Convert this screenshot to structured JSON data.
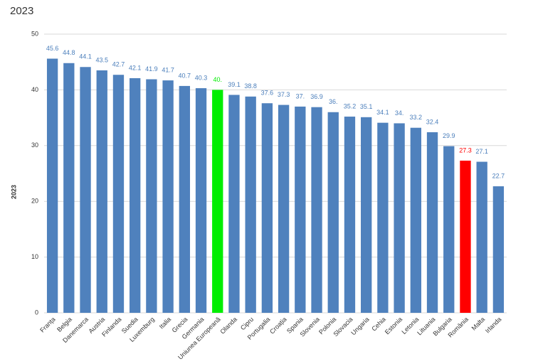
{
  "chart_data": {
    "type": "bar",
    "title": "2023",
    "y_label": "2023",
    "categories": [
      "Franța",
      "Belgia",
      "Danemarca",
      "Austria",
      "Finlanda",
      "Suedia",
      "Luxemburg",
      "Italia",
      "Grecia",
      "Germania",
      "Uniunea Europeană",
      "Olanda",
      "Cipru",
      "Portugalia",
      "Croația",
      "Spania",
      "Slovenia",
      "Polonia",
      "Slovacia",
      "Ungaria",
      "Cehia",
      "Estonia",
      "Letonia",
      "Lituania",
      "Bulgaria",
      "România",
      "Malta",
      "Irlanda"
    ],
    "values": [
      45.6,
      44.8,
      44.1,
      43.5,
      42.7,
      42.1,
      41.9,
      41.7,
      40.7,
      40.3,
      40,
      39.1,
      38.8,
      37.6,
      37.3,
      37,
      36.9,
      36,
      35.2,
      35.1,
      34.1,
      34,
      33.2,
      32.4,
      29.9,
      27.3,
      27.1,
      22.7
    ],
    "value_labels": [
      "45.6",
      "44.8",
      "44.1",
      "43.5",
      "42.7",
      "42.1",
      "41.9",
      "41.7",
      "40.7",
      "40.3",
      "40.",
      "39.1",
      "38.8",
      "37.6",
      "37.3",
      "37.",
      "36.9",
      "36.",
      "35.2",
      "35.1",
      "34.1",
      "34.",
      "33.2",
      "32.4",
      "29.9",
      "27.3",
      "27.1",
      "22.7"
    ],
    "colors": [
      "#4f81bd",
      "#4f81bd",
      "#4f81bd",
      "#4f81bd",
      "#4f81bd",
      "#4f81bd",
      "#4f81bd",
      "#4f81bd",
      "#4f81bd",
      "#4f81bd",
      "#00ee00",
      "#4f81bd",
      "#4f81bd",
      "#4f81bd",
      "#4f81bd",
      "#4f81bd",
      "#4f81bd",
      "#4f81bd",
      "#4f81bd",
      "#4f81bd",
      "#4f81bd",
      "#4f81bd",
      "#4f81bd",
      "#4f81bd",
      "#4f81bd",
      "#ff0000",
      "#4f81bd",
      "#4f81bd"
    ],
    "ylim": [
      0,
      50
    ],
    "yticks": [
      0,
      10,
      20,
      30,
      40,
      50
    ],
    "grid": true
  }
}
